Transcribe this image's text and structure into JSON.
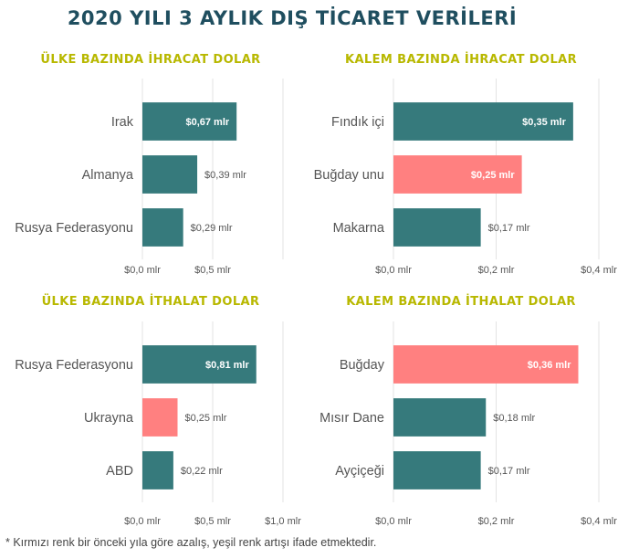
{
  "page": {
    "title": "2020 YILI 3 AYLIK DIŞ TİCARET VERİLERİ",
    "footnote": "* Kırmızı renk bir önceki yıla göre azalış, yeşil renk artışı ifade etmektedir."
  },
  "colors": {
    "increase": "#367a7c",
    "decrease": "#ff8080",
    "gridline": "#e3e3e3"
  },
  "chart_data": [
    {
      "type": "bar",
      "orientation": "horizontal",
      "title": "ÜLKE BAZINDA İHRACAT DOLAR",
      "categories": [
        "Irak",
        "Almanya",
        "Rusya Federasyonu"
      ],
      "values": [
        0.67,
        0.39,
        0.29
      ],
      "value_labels": [
        "$0,67 mlr",
        "$0,39 mlr",
        "$0,29 mlr"
      ],
      "trend": [
        "increase",
        "increase",
        "increase"
      ],
      "xlim": [
        0,
        1.0
      ],
      "ticks": [
        0,
        0.5
      ],
      "tick_labels": [
        "$0,0 mlr",
        "$0,5 mlr"
      ],
      "grid": true
    },
    {
      "type": "bar",
      "orientation": "horizontal",
      "title": "KALEM BAZINDA İHRACAT DOLAR",
      "categories": [
        "Fındık içi",
        "Buğday unu",
        "Makarna"
      ],
      "values": [
        0.35,
        0.25,
        0.17
      ],
      "value_labels": [
        "$0,35 mlr",
        "$0,25 mlr",
        "$0,17 mlr"
      ],
      "trend": [
        "increase",
        "decrease",
        "increase"
      ],
      "xlim": [
        0,
        0.4
      ],
      "ticks": [
        0,
        0.2,
        0.4
      ],
      "tick_labels": [
        "$0,0 mlr",
        "$0,2 mlr",
        "$0,4 mlr"
      ],
      "grid": true
    },
    {
      "type": "bar",
      "orientation": "horizontal",
      "title": "ÜLKE BAZINDA İTHALAT DOLAR",
      "categories": [
        "Rusya Federasyonu",
        "Ukrayna",
        "ABD"
      ],
      "values": [
        0.81,
        0.25,
        0.22
      ],
      "value_labels": [
        "$0,81 mlr",
        "$0,25 mlr",
        "$0,22 mlr"
      ],
      "trend": [
        "increase",
        "decrease",
        "increase"
      ],
      "xlim": [
        0,
        1.0
      ],
      "ticks": [
        0,
        0.5,
        1.0
      ],
      "tick_labels": [
        "$0,0 mlr",
        "$0,5 mlr",
        "$1,0 mlr"
      ],
      "grid": true
    },
    {
      "type": "bar",
      "orientation": "horizontal",
      "title": "KALEM BAZINDA İTHALAT DOLAR",
      "categories": [
        "Buğday",
        "Mısır Dane",
        "Ayçiçeği"
      ],
      "values": [
        0.36,
        0.18,
        0.17
      ],
      "value_labels": [
        "$0,36 mlr",
        "$0,18 mlr",
        "$0,17 mlr"
      ],
      "trend": [
        "decrease",
        "increase",
        "increase"
      ],
      "xlim": [
        0,
        0.4
      ],
      "ticks": [
        0,
        0.2,
        0.4
      ],
      "tick_labels": [
        "$0,0 mlr",
        "$0,2 mlr",
        "$0,4 mlr"
      ],
      "grid": true
    }
  ]
}
